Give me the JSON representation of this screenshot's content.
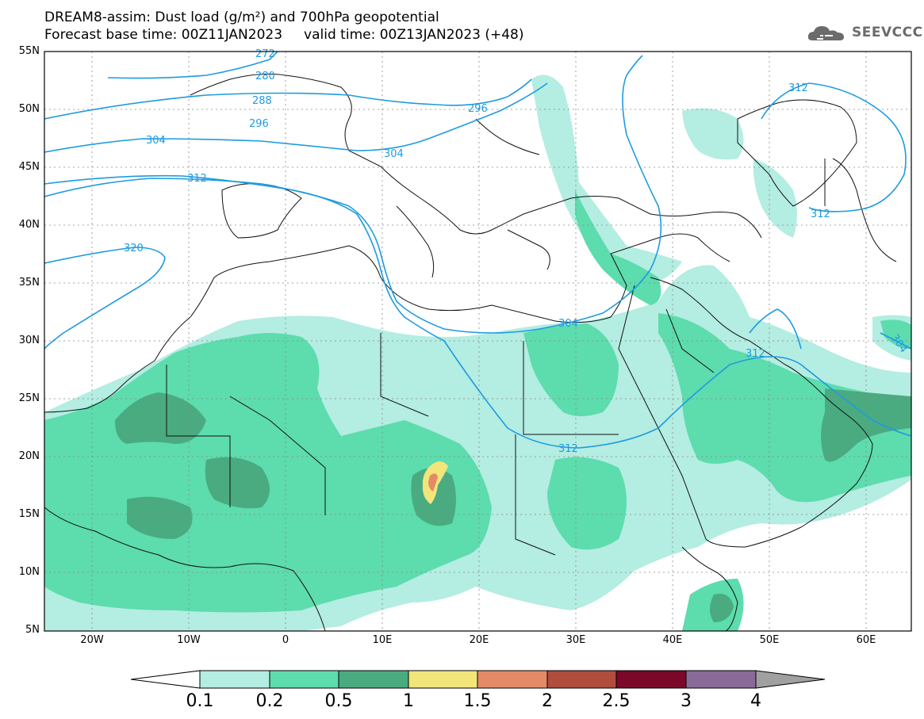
{
  "title_line1": "DREAM8-assim: Dust load (g/m²) and 700hPa geopotential",
  "title_line2": "Forecast base time: 00Z11JAN2023     valid time: 00Z13JAN2023 (+48)",
  "logo_text": "SEEVCCC",
  "lat_labels": [
    "55N",
    "50N",
    "45N",
    "40N",
    "35N",
    "30N",
    "25N",
    "20N",
    "15N",
    "10N",
    "5N"
  ],
  "lon_labels": [
    "20W",
    "10W",
    "0",
    "10E",
    "20E",
    "30E",
    "40E",
    "50E",
    "60E"
  ],
  "contour_labels": [
    "272",
    "280",
    "288",
    "296",
    "296",
    "304",
    "304",
    "304",
    "312",
    "312",
    "312",
    "312",
    "312",
    "320",
    "304"
  ],
  "colorbar": {
    "levels": [
      "0.1",
      "0.2",
      "0.5",
      "1",
      "1.5",
      "2",
      "2.5",
      "3",
      "4"
    ],
    "colors": [
      "#b4ede2",
      "#5ddcad",
      "#4aab80",
      "#f2e57a",
      "#e48a66",
      "#b04d3d",
      "#7a0828",
      "#8a6a99",
      "#a0a0a0"
    ]
  },
  "colors": {
    "dust_light": "#b4ede2",
    "dust_medium": "#5ddcad",
    "dust_dark": "#4aab80",
    "dust_yellow": "#f2e57a",
    "dust_orange": "#e48a66",
    "contour": "#1e9be0"
  }
}
